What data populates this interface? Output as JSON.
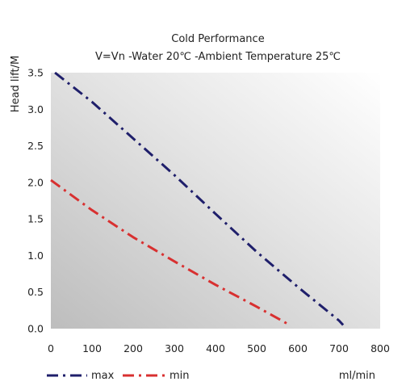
{
  "chart_data": {
    "type": "line",
    "title": "Cold Performance",
    "subtitle": "V=Vn -Water 20℃ -Ambient Temperature 25℃",
    "xlabel": "ml/min",
    "ylabel": "Head lift/M",
    "xlim": [
      0,
      800
    ],
    "ylim": [
      0,
      3.5
    ],
    "x_ticks": [
      "0",
      "100",
      "200",
      "300",
      "400",
      "500",
      "600",
      "700",
      "800"
    ],
    "y_ticks": [
      "0.0",
      "0.5",
      "1.0",
      "1.5",
      "2.0",
      "2.5",
      "3.0",
      "3.5"
    ],
    "grid": false,
    "legend_position": "bottom-left",
    "series": [
      {
        "name": "max",
        "color": "#1f1f6b",
        "style": "dash-dot",
        "x": [
          10,
          100,
          200,
          300,
          400,
          500,
          600,
          700,
          710
        ],
        "y": [
          3.5,
          3.1,
          2.6,
          2.1,
          1.57,
          1.05,
          0.57,
          0.11,
          0.05
        ]
      },
      {
        "name": "min",
        "color": "#d83030",
        "style": "dash-dot",
        "x": [
          0,
          100,
          200,
          300,
          400,
          500,
          580
        ],
        "y": [
          2.03,
          1.62,
          1.25,
          0.92,
          0.6,
          0.3,
          0.05
        ]
      }
    ]
  }
}
